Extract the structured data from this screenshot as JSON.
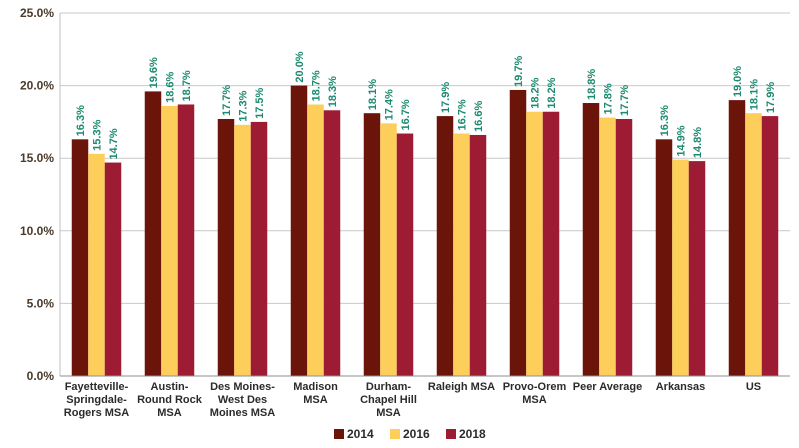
{
  "chart_data": {
    "type": "bar",
    "title": "",
    "xlabel": "",
    "ylabel": "",
    "ylim": [
      0,
      25
    ],
    "yticks": [
      "0.0%",
      "5.0%",
      "10.0%",
      "15.0%",
      "20.0%",
      "25.0%"
    ],
    "grid": true,
    "legend_position": "bottom",
    "label_color": "#1d8a6f",
    "categories": [
      [
        "Fayetteville-",
        "Springdale-",
        "Rogers MSA"
      ],
      [
        "Austin-",
        "Round Rock",
        "MSA"
      ],
      [
        "Des Moines-",
        "West Des",
        "Moines MSA"
      ],
      [
        "Madison",
        "MSA"
      ],
      [
        "Durham-",
        "Chapel Hill",
        "MSA"
      ],
      [
        "Raleigh MSA"
      ],
      [
        "Provo-Orem",
        "MSA"
      ],
      [
        "Peer Average"
      ],
      [
        "Arkansas"
      ],
      [
        "US"
      ]
    ],
    "series": [
      {
        "name": "2014",
        "color": "#6b1409",
        "values": [
          16.3,
          19.6,
          17.7,
          20.0,
          18.1,
          17.9,
          19.7,
          18.8,
          16.3,
          19.0
        ],
        "labels": [
          "16.3%",
          "19.6%",
          "17.7%",
          "20.0%",
          "18.1%",
          "17.9%",
          "19.7%",
          "18.8%",
          "16.3%",
          "19.0%"
        ]
      },
      {
        "name": "2016",
        "color": "#fdcf5a",
        "values": [
          15.3,
          18.6,
          17.3,
          18.7,
          17.4,
          16.7,
          18.2,
          17.8,
          14.9,
          18.1
        ],
        "labels": [
          "15.3%",
          "18.6%",
          "17.3%",
          "18.7%",
          "17.4%",
          "16.7%",
          "18.2%",
          "17.8%",
          "14.9%",
          "18.1%"
        ]
      },
      {
        "name": "2018",
        "color": "#9e1b34",
        "values": [
          14.7,
          18.7,
          17.5,
          18.3,
          16.7,
          16.6,
          18.2,
          17.7,
          14.8,
          17.9
        ],
        "labels": [
          "14.7%",
          "18.7%",
          "17.5%",
          "18.3%",
          "16.7%",
          "16.6%",
          "18.2%",
          "17.7%",
          "14.8%",
          "17.9%"
        ]
      }
    ]
  }
}
